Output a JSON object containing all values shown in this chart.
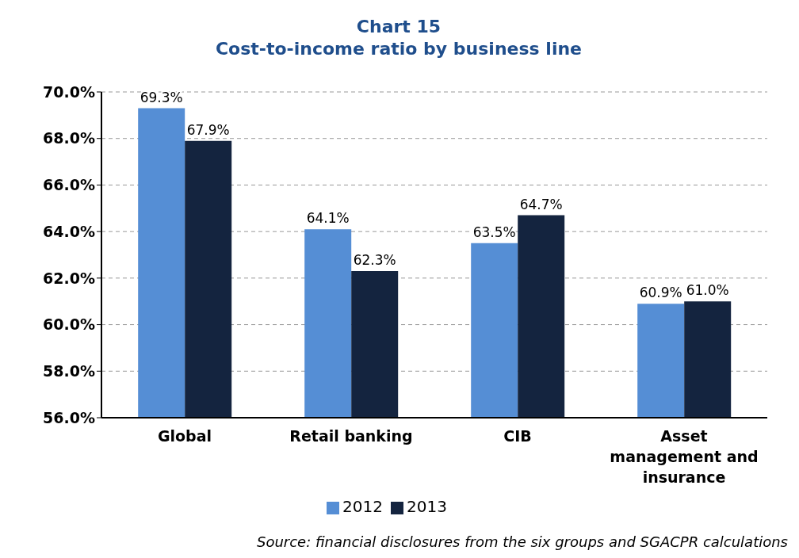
{
  "chart_data": {
    "type": "bar",
    "title": "Chart 15",
    "subtitle": "Cost-to-income ratio by business line",
    "categories": [
      "Global",
      "Retail banking",
      "CIB",
      "Asset management and insurance"
    ],
    "series": [
      {
        "name": "2012",
        "color": "#558ed5",
        "values": [
          69.3,
          64.1,
          63.5,
          60.9
        ],
        "value_labels": [
          "69.3%",
          "64.1%",
          "63.5%",
          "60.9%"
        ]
      },
      {
        "name": "2013",
        "color": "#14243f",
        "values": [
          67.9,
          62.3,
          64.7,
          61.0
        ],
        "value_labels": [
          "67.9%",
          "62.3%",
          "64.7%",
          "61.0%"
        ]
      }
    ],
    "ylim": [
      56,
      70
    ],
    "yticks": [
      {
        "value": 56,
        "label": "56.0%"
      },
      {
        "value": 58,
        "label": "58.0%"
      },
      {
        "value": 60,
        "label": "60.0%"
      },
      {
        "value": 62,
        "label": "62.0%"
      },
      {
        "value": 64,
        "label": "64.0%"
      },
      {
        "value": 66,
        "label": "66.0%"
      },
      {
        "value": 68,
        "label": "68.0%"
      },
      {
        "value": 70,
        "label": "70.0%"
      }
    ],
    "grid": "y",
    "legend": "bottom",
    "annotations": [
      "Source: financial disclosures from the six groups and SGACPR calculations"
    ]
  }
}
